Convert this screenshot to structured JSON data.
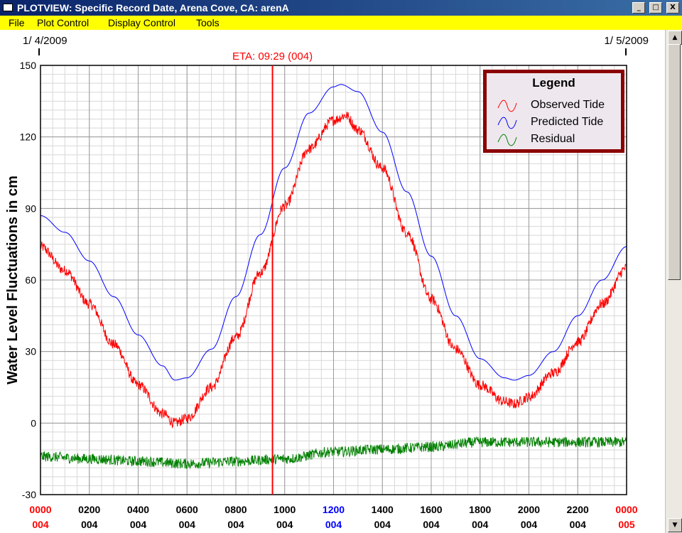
{
  "window": {
    "title": "PLOTVIEW: Specific Record Date, Arena Cove, CA: arenA",
    "minimize": "_",
    "maximize": "□",
    "close": "X"
  },
  "menu": {
    "items": [
      "File",
      "Plot Control",
      "Display Control",
      "Tools"
    ]
  },
  "scrollbar": {
    "up": "▲",
    "down": "▼"
  },
  "chart_data": {
    "type": "line",
    "ylabel": "Water Level Fluctuations in cm",
    "ylim": [
      -30,
      150
    ],
    "yticks": [
      -30,
      0,
      30,
      60,
      90,
      120,
      150
    ],
    "xlim_hours": [
      0,
      24
    ],
    "grid": true,
    "date_start": "1/ 4/2009",
    "date_end": "1/ 5/2009",
    "eta_label": "ETA: 09:29 (004)",
    "eta_hour": 9.5,
    "x_ticks": [
      {
        "time": "0000",
        "day": "004",
        "time_color": "#ff0000",
        "day_color": "#ff0000"
      },
      {
        "time": "0200",
        "day": "004",
        "time_color": "#000000",
        "day_color": "#000000"
      },
      {
        "time": "0400",
        "day": "004",
        "time_color": "#000000",
        "day_color": "#000000"
      },
      {
        "time": "0600",
        "day": "004",
        "time_color": "#000000",
        "day_color": "#000000"
      },
      {
        "time": "0800",
        "day": "004",
        "time_color": "#000000",
        "day_color": "#000000"
      },
      {
        "time": "1000",
        "day": "004",
        "time_color": "#000000",
        "day_color": "#000000"
      },
      {
        "time": "1200",
        "day": "004",
        "time_color": "#0000ff",
        "day_color": "#0000ff"
      },
      {
        "time": "1400",
        "day": "004",
        "time_color": "#000000",
        "day_color": "#000000"
      },
      {
        "time": "1600",
        "day": "004",
        "time_color": "#000000",
        "day_color": "#000000"
      },
      {
        "time": "1800",
        "day": "004",
        "time_color": "#000000",
        "day_color": "#000000"
      },
      {
        "time": "2000",
        "day": "004",
        "time_color": "#000000",
        "day_color": "#000000"
      },
      {
        "time": "2200",
        "day": "004",
        "time_color": "#000000",
        "day_color": "#000000"
      },
      {
        "time": "0000",
        "day": "005",
        "time_color": "#ff0000",
        "day_color": "#ff0000"
      }
    ],
    "legend": {
      "title": "Legend",
      "position": "top-right",
      "entries": [
        "Observed Tide",
        "Predicted Tide",
        "Residual"
      ]
    },
    "series": [
      {
        "name": "Predicted Tide",
        "color": "#0000ff",
        "x": [
          0,
          1,
          2,
          3,
          4,
          5,
          5.5,
          6,
          7,
          8,
          9,
          10,
          11,
          12,
          12.3,
          13,
          14,
          15,
          16,
          17,
          18,
          19,
          19.4,
          20,
          21,
          22,
          23,
          24
        ],
        "y": [
          87,
          80,
          68,
          53,
          37,
          24,
          18,
          19,
          31,
          53,
          79,
          107,
          130,
          141,
          142,
          139,
          122,
          97,
          70,
          45,
          27,
          19,
          18,
          20,
          30,
          45,
          60,
          74
        ]
      },
      {
        "name": "Observed Tide",
        "color": "#ff0000",
        "x": [
          0,
          1,
          2,
          3,
          4,
          5,
          5.5,
          6,
          7,
          8,
          9,
          10,
          11,
          12,
          12.5,
          13,
          14,
          15,
          16,
          17,
          18,
          19,
          19.4,
          20,
          21,
          22,
          23,
          24
        ],
        "y": [
          74,
          64,
          50,
          33,
          16,
          4,
          0,
          2,
          15,
          36,
          63,
          91,
          115,
          127,
          129,
          123,
          107,
          80,
          52,
          31,
          16,
          9,
          8,
          11,
          21,
          34,
          50,
          65
        ]
      },
      {
        "name": "Residual",
        "color": "#008000",
        "x": [
          0,
          2,
          4,
          6,
          8,
          10,
          12,
          14,
          16,
          18,
          20,
          22,
          24
        ],
        "y": [
          -14,
          -15,
          -16,
          -17,
          -16,
          -15,
          -12,
          -11,
          -10,
          -8,
          -8,
          -8,
          -8
        ]
      }
    ]
  }
}
